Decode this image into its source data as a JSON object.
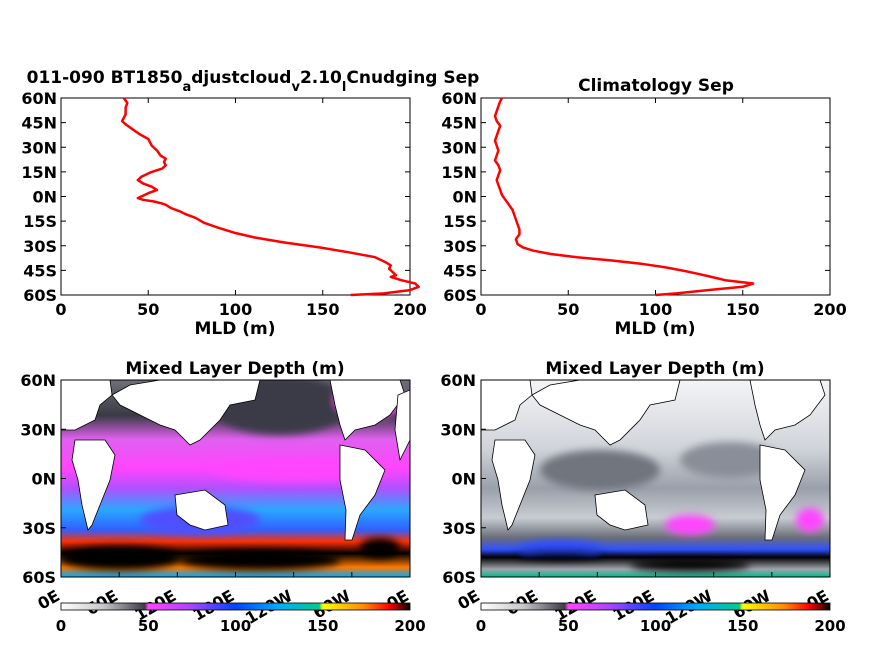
{
  "chart_data": [
    {
      "type": "line",
      "title": "011-090 BT1850",
      "title_sub1": "a",
      "title_mid": "djustcloud",
      "title_sub2": "v",
      "title_mid2": "2.10",
      "title_sub3": "l",
      "title_end": "Cnudging Sep",
      "xlabel": "MLD (m)",
      "ylabel": "",
      "xlim": [
        0,
        200
      ],
      "ylim": [
        -60,
        60
      ],
      "xticks": [
        "0",
        "50",
        "100",
        "150",
        "200"
      ],
      "yticks": [
        "60S",
        "45S",
        "30S",
        "15S",
        "0N",
        "15N",
        "30N",
        "45N",
        "60N"
      ],
      "series": [
        {
          "lat": [
            60,
            57,
            54,
            50,
            46,
            44,
            41,
            38,
            35,
            31,
            28,
            25,
            23,
            21,
            19,
            17,
            15,
            12,
            10,
            8,
            6,
            4,
            2,
            0,
            -1,
            -2,
            -3,
            -4,
            -5,
            -7,
            -9,
            -11,
            -13,
            -16,
            -19,
            -22,
            -25,
            -28,
            -31,
            -34,
            -37,
            -40,
            -42,
            -44,
            -46,
            -48,
            -49,
            -51,
            -53,
            -55,
            -57,
            -59,
            -60
          ],
          "mld": [
            36,
            38,
            37,
            37,
            35,
            37,
            41,
            45,
            50,
            52,
            55,
            57,
            60,
            59,
            60,
            58,
            52,
            46,
            44,
            47,
            52,
            55,
            50,
            46,
            44,
            47,
            53,
            57,
            60,
            63,
            68,
            72,
            77,
            82,
            90,
            99,
            111,
            128,
            148,
            165,
            180,
            186,
            189,
            188,
            190,
            192,
            189,
            195,
            203,
            205,
            200,
            185,
            166
          ],
          "color": "#ff0000"
        }
      ]
    },
    {
      "type": "line",
      "title": "Climatology Sep",
      "xlabel": "MLD (m)",
      "ylabel": "",
      "xlim": [
        0,
        200
      ],
      "ylim": [
        -60,
        60
      ],
      "xticks": [
        "0",
        "50",
        "100",
        "150",
        "200"
      ],
      "yticks": [
        "60S",
        "45S",
        "30S",
        "15S",
        "0N",
        "15N",
        "30N",
        "45N",
        "60N"
      ],
      "series": [
        {
          "lat": [
            60,
            58,
            55,
            52,
            49,
            46,
            43,
            40,
            37,
            34,
            31,
            28,
            25,
            22,
            19,
            16,
            13,
            10,
            7,
            4,
            1,
            -2,
            -5,
            -8,
            -11,
            -14,
            -17,
            -20,
            -23,
            -26,
            -29,
            -31,
            -33,
            -35,
            -37,
            -39,
            -41,
            -43,
            -45,
            -47,
            -49,
            -51,
            -52,
            -53,
            -55,
            -57,
            -59,
            -60
          ],
          "mld": [
            12,
            11,
            10,
            9,
            8,
            9,
            11,
            10,
            9,
            8,
            9,
            10,
            9,
            8,
            10,
            11,
            10,
            9,
            10,
            11,
            12,
            14,
            16,
            18,
            19,
            20,
            21,
            22,
            22,
            20,
            21,
            24,
            30,
            40,
            55,
            75,
            92,
            105,
            115,
            124,
            132,
            140,
            148,
            156,
            150,
            130,
            112,
            100
          ],
          "color": "#ff0000"
        }
      ]
    },
    {
      "type": "heatmap",
      "title": "Mixed Layer Depth (m)",
      "xticks": [
        "0E",
        "60E",
        "120E",
        "180E",
        "120W",
        "60W",
        "0E"
      ],
      "yticks": [
        "60N",
        "30N",
        "0N",
        "30S",
        "60S"
      ],
      "colorbar_ticks": [
        "0",
        "50",
        "100",
        "150",
        "200"
      ],
      "colorbar_range": [
        0,
        200
      ],
      "colormap": [
        "#ffffff",
        "#c8c8cc",
        "#3c3c46",
        "#ff44ff",
        "#aa44ff",
        "#0044ff",
        "#00aaff",
        "#00cc88",
        "#ffff00",
        "#ff8800",
        "#ff0000",
        "#000000"
      ]
    },
    {
      "type": "heatmap",
      "title": "Mixed Layer Depth (m)",
      "xticks": [
        "0E",
        "60E",
        "120E",
        "180E",
        "120W",
        "60W",
        "0E"
      ],
      "yticks": [
        "60N",
        "30N",
        "0N",
        "30S",
        "60S"
      ],
      "colorbar_ticks": [
        "0",
        "50",
        "100",
        "150",
        "200"
      ],
      "colorbar_range": [
        0,
        200
      ],
      "colormap": [
        "#ffffff",
        "#c8c8cc",
        "#3c3c46",
        "#ff44ff",
        "#aa44ff",
        "#0044ff",
        "#00aaff",
        "#00cc88",
        "#ffff00",
        "#ff8800",
        "#ff0000",
        "#000000"
      ]
    }
  ]
}
